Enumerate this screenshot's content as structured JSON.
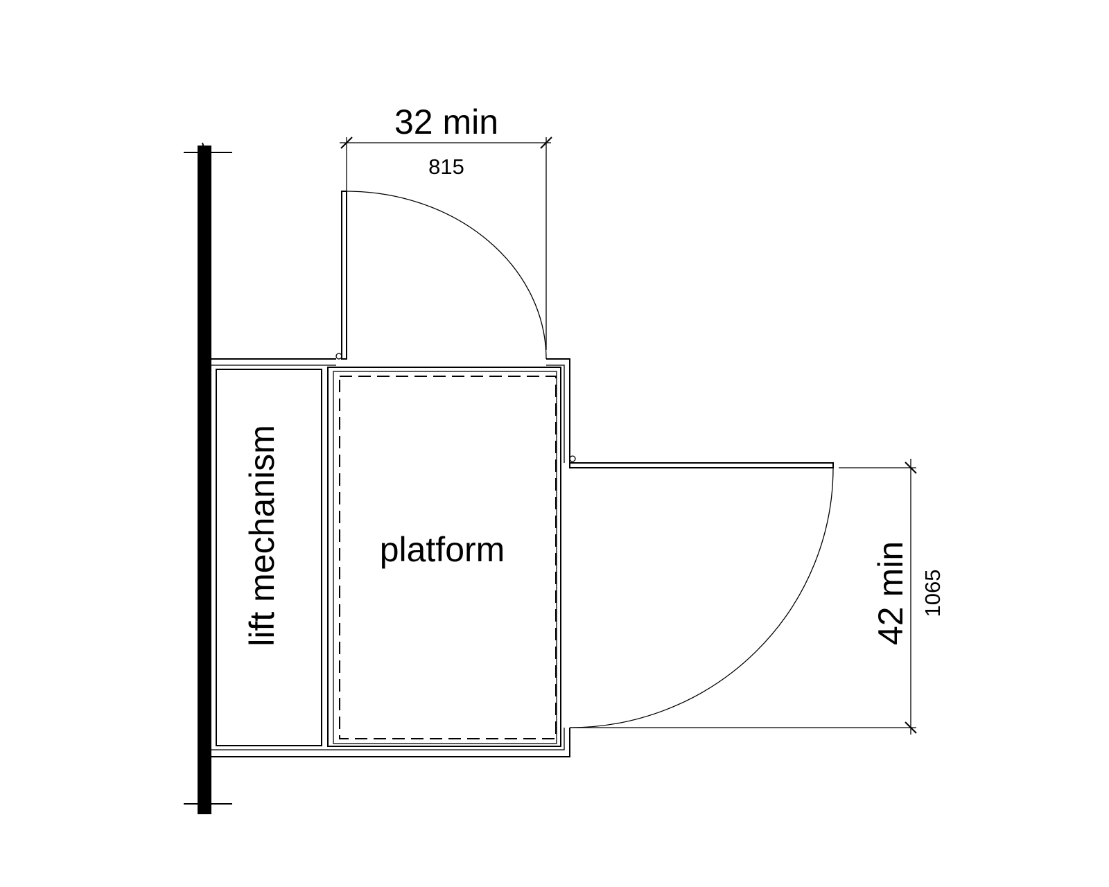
{
  "dimensions": {
    "door1": {
      "label": "32 min",
      "metric": "815"
    },
    "door2": {
      "label": "42 min",
      "metric": "1065"
    }
  },
  "labels": {
    "mechanism": "lift mechanism",
    "platform": "platform"
  },
  "colors": {
    "line": "#000000",
    "background": "#ffffff"
  }
}
